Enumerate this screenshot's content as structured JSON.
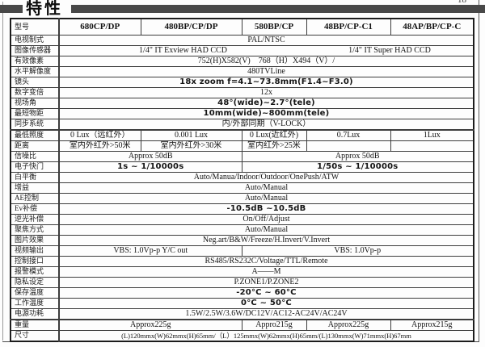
{
  "header": {
    "title": "特性",
    "page_number": "18"
  },
  "colors": {
    "bar": "#484848",
    "border": "#3c3c3c",
    "text": "#141414"
  },
  "table": {
    "rows": [
      {
        "label": "型号",
        "header": true,
        "cells": [
          {
            "text": "680CP/DP"
          },
          {
            "text": "480BP/CP/DP"
          },
          {
            "text": "580BP/CP"
          },
          {
            "text": "48BP/CP-C1"
          },
          {
            "text": "48AP/BP/CP-C"
          }
        ]
      },
      {
        "label": "电视制式",
        "cells": [
          {
            "text": "PAL/NTSC",
            "span": 5
          }
        ]
      },
      {
        "label": "图像传感器",
        "cells": [
          {
            "text": "1/4\" IT Exview HAD CCD",
            "span": 3,
            "no_divider": true
          },
          {
            "text": "1/4\" IT Super HAD CCD",
            "span": 2
          }
        ]
      },
      {
        "label": "有效像素",
        "cells": [
          {
            "text": "752(H)X582(V)　768（H）X494（V）/",
            "span": 5
          }
        ]
      },
      {
        "label": "水平解像度",
        "cells": [
          {
            "text": "480TVLine",
            "span": 5
          }
        ]
      },
      {
        "label": "镜头",
        "cells": [
          {
            "text": "18x zoom f=4.1~73.8mm(F1.4~F3.0)",
            "span": 5,
            "emph": true
          }
        ]
      },
      {
        "label": "数字变倍",
        "cells": [
          {
            "text": "12x",
            "span": 5
          }
        ]
      },
      {
        "label": "视场角",
        "cells": [
          {
            "text": "48°(wide)~2.7°(tele)",
            "span": 5,
            "emph": true
          }
        ]
      },
      {
        "label": "最短物距",
        "cells": [
          {
            "text": "10mm(wide)~800mm(tele)",
            "span": 5,
            "emph": true
          }
        ]
      },
      {
        "label": "同步系统",
        "cells": [
          {
            "text": "内/外部同期（V-LOCK）",
            "span": 5
          }
        ]
      },
      {
        "label": "最低照度",
        "thick_top": true,
        "cells": [
          {
            "text": "0 Lux（远红外）"
          },
          {
            "text": "0.001 Lux"
          },
          {
            "text": "0 Lux(近红外)"
          },
          {
            "text": "0.7Lux"
          },
          {
            "text": "1Lux"
          }
        ]
      },
      {
        "label": "距离",
        "cells": [
          {
            "text": "室内外红外>50米"
          },
          {
            "text": "室内外红外>30米"
          },
          {
            "text": "室内红外>25米"
          },
          {
            "text": ""
          },
          {
            "text": ""
          }
        ]
      },
      {
        "label": "信噪比",
        "cells": [
          {
            "text": "Approx 50dB",
            "span": 2
          },
          {
            "text": "Approx 50dB",
            "span": 3
          }
        ]
      },
      {
        "label": "电子快门",
        "cells": [
          {
            "text": "1s ~ 1/10000s",
            "span": 2,
            "emph": true
          },
          {
            "text": "1/50s ~ 1/10000s",
            "span": 3,
            "emph": true
          }
        ]
      },
      {
        "label": "白平衡",
        "cells": [
          {
            "text": "Auto/Manua/Indoor/Outdoor/OnePush/ATW",
            "span": 5
          }
        ]
      },
      {
        "label": "增益",
        "cells": [
          {
            "text": "Auto/Manual",
            "span": 5
          }
        ]
      },
      {
        "label": "AE控制",
        "cells": [
          {
            "text": "Auto/Manual",
            "span": 5
          }
        ]
      },
      {
        "label": "Ev补偿",
        "cells": [
          {
            "text": "-10.5dB ~10.5dB",
            "span": 5,
            "emph": true
          }
        ]
      },
      {
        "label": "逆光补偿",
        "cells": [
          {
            "text": "On/Off/Adjust",
            "span": 5
          }
        ]
      },
      {
        "label": "聚焦方式",
        "cells": [
          {
            "text": "Auto/Manual",
            "span": 5
          }
        ]
      },
      {
        "label": "图片效果",
        "cells": [
          {
            "text": "Neg.art/B&W/Freeze/H.Invert/V.Invert",
            "span": 5
          }
        ]
      },
      {
        "label": "视频输出",
        "cells": [
          {
            "text": "VBS: 1.0Vp-p Y/C out",
            "span": 2
          },
          {
            "text": "VBS: 1.0Vp-p",
            "span": 3
          }
        ]
      },
      {
        "label": "控制接口",
        "cells": [
          {
            "text": "RS485/RS232C/Voltage/TTL/Remote",
            "span": 5
          }
        ]
      },
      {
        "label": "报警模式",
        "cells": [
          {
            "text": "A——M",
            "span": 5
          }
        ]
      },
      {
        "label": "隐私设定",
        "cells": [
          {
            "text": "P.ZONE1/P.ZONE2",
            "span": 5
          }
        ]
      },
      {
        "label": "保存温度",
        "cells": [
          {
            "text": "-20°C ~ 60°C",
            "span": 5,
            "emph": true
          }
        ]
      },
      {
        "label": "工作温度",
        "cells": [
          {
            "text": "0°C ~ 50°C",
            "span": 5,
            "emph": true
          }
        ]
      },
      {
        "label": "电源功耗",
        "cells": [
          {
            "text": "1.5W/2.5W/3.6W/DC12V/AC12-AC24V/AC24V",
            "span": 5
          }
        ]
      },
      {
        "label": "重量",
        "thick_top": true,
        "cells": [
          {
            "text": "Approx225g",
            "span": 2
          },
          {
            "text": "Appro215g"
          },
          {
            "text": "Approx225g"
          },
          {
            "text": "Approx215g"
          }
        ]
      },
      {
        "label": "尺寸",
        "cells": [
          {
            "text": "(L)120mmx(W)62mmx(H)65mm/（L）125mmx(W)62mmx(H)65mm/(L)130mmx(W)71mmx(H)67mm",
            "span": 5,
            "small": true
          }
        ]
      }
    ]
  }
}
